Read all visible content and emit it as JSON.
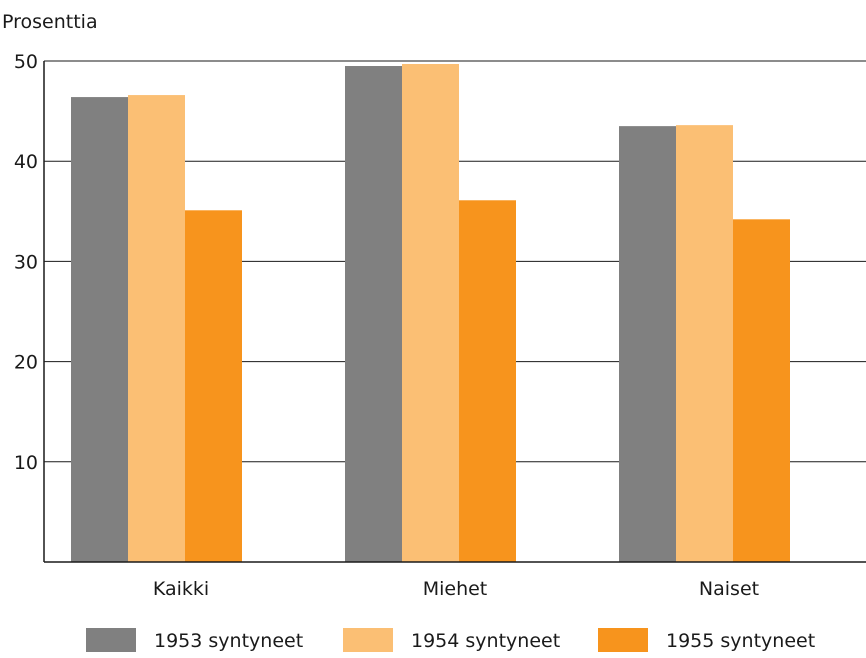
{
  "chart_data": {
    "type": "bar",
    "ylabel": "Prosenttia",
    "xlabel": "",
    "categories": [
      "Kaikki",
      "Miehet",
      "Naiset"
    ],
    "series": [
      {
        "name": "1953 syntyneet",
        "color": "#808080",
        "values": [
          46.4,
          49.5,
          43.5
        ]
      },
      {
        "name": "1954 syntyneet",
        "color": "#fbbf74",
        "values": [
          46.6,
          49.7,
          43.6
        ]
      },
      {
        "name": "1955 syntyneet",
        "color": "#f7941d",
        "values": [
          35.1,
          36.1,
          34.2
        ]
      }
    ],
    "ylim": [
      0,
      50
    ],
    "yticks": [
      10,
      20,
      30,
      40,
      50
    ],
    "grid": true,
    "legend": "bottom"
  }
}
